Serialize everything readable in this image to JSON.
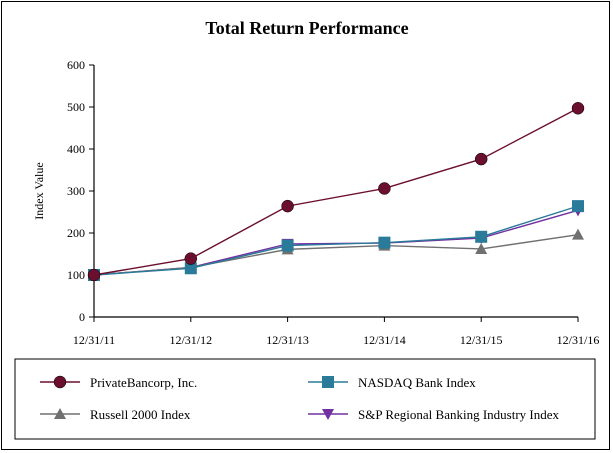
{
  "chart_data": {
    "type": "line",
    "title": "Total Return Performance",
    "xlabel": "",
    "ylabel": "Index Value",
    "categories": [
      "12/31/11",
      "12/31/12",
      "12/31/13",
      "12/31/14",
      "12/31/15",
      "12/31/16"
    ],
    "ylim": [
      0,
      600
    ],
    "yticks": [
      0,
      100,
      200,
      300,
      400,
      500,
      600
    ],
    "grid": false,
    "legend": "bottom",
    "series": [
      {
        "name": "PrivateBancorp, Inc.",
        "values": [
          100,
          139,
          264,
          306,
          376,
          497
        ],
        "color": "#6b0f2e",
        "marker": "circle"
      },
      {
        "name": "NASDAQ Bank Index",
        "values": [
          100,
          116,
          170,
          177,
          191,
          264
        ],
        "color": "#2a7a9a",
        "marker": "square"
      },
      {
        "name": "Russell 2000 Index",
        "values": [
          100,
          118,
          161,
          170,
          162,
          196
        ],
        "color": "#707070",
        "marker": "triangle-up"
      },
      {
        "name": "S&P Regional Banking Industry Index",
        "values": [
          100,
          118,
          174,
          176,
          188,
          254
        ],
        "color": "#7030a0",
        "marker": "triangle-down"
      }
    ]
  }
}
